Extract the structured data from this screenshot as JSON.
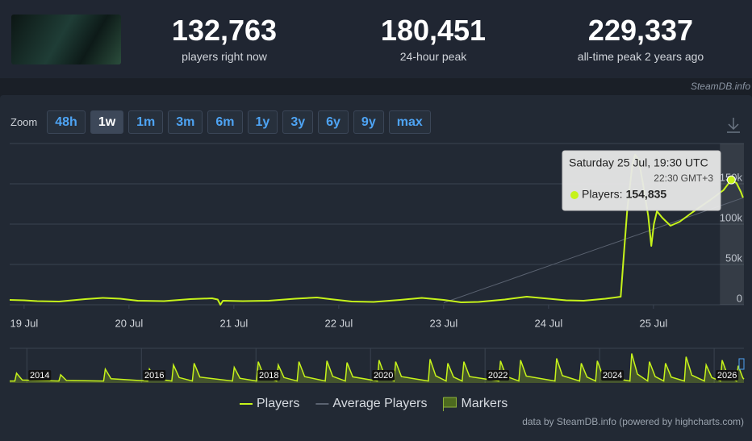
{
  "header": {
    "stats": [
      {
        "value": "132,763",
        "label": "players right now"
      },
      {
        "value": "180,451",
        "label": "24-hour peak"
      },
      {
        "value": "229,337",
        "label": "all-time peak 2 years ago"
      }
    ],
    "credit": "SteamDB.info"
  },
  "zoom": {
    "label": "Zoom",
    "buttons": [
      "48h",
      "1w",
      "1m",
      "3m",
      "6m",
      "1y",
      "3y",
      "6y",
      "9y",
      "max"
    ],
    "active": "1w"
  },
  "chart_data": [
    {
      "type": "line",
      "x": [
        -3.3,
        0,
        3,
        8,
        14,
        18,
        22,
        26,
        32,
        38,
        43,
        44.3,
        44.9,
        45.5,
        50,
        56,
        62,
        67,
        70,
        75,
        80,
        86,
        91,
        96,
        100,
        104,
        110,
        115,
        119,
        124,
        128,
        133,
        136.5,
        137.2,
        138,
        139.2,
        139.8,
        140.6,
        141.6,
        142.8,
        143.5,
        144.1,
        144.8,
        146,
        147.9,
        150,
        153,
        157,
        160,
        161.8,
        163,
        164,
        164.5
      ],
      "series": [
        {
          "name": "Players",
          "color": "#c6f31a",
          "values": [
            6000,
            5500,
            4500,
            4000,
            7000,
            8500,
            7500,
            5000,
            4500,
            7000,
            8000,
            6500,
            0,
            5000,
            4500,
            5000,
            7500,
            9000,
            7000,
            4000,
            3500,
            6000,
            8500,
            6000,
            3000,
            3500,
            6500,
            10000,
            8000,
            5500,
            5000,
            7500,
            10000,
            60000,
            118000,
            175000,
            186000,
            180000,
            150000,
            110000,
            73000,
            100000,
            116000,
            108000,
            98000,
            103000,
            115000,
            130000,
            142000,
            154835,
            151000,
            140000,
            132763
          ]
        },
        {
          "name": "Average Players",
          "color": "#5a6270",
          "values": [
            null,
            null,
            null,
            null,
            null,
            null,
            null,
            null,
            null,
            null,
            null,
            null,
            null,
            null,
            null,
            null,
            null,
            null,
            null,
            null,
            null,
            null,
            null,
            2500,
            10000,
            17700,
            29000,
            38600,
            46200,
            55700,
            63300,
            72800,
            79400,
            80800,
            82300,
            84600,
            85700,
            87200,
            89100,
            91400,
            92700,
            93900,
            95200,
            97500,
            101100,
            105100,
            110800,
            118400,
            124100,
            127500,
            129800,
            131700,
            132600
          ]
        }
      ],
      "markers": {
        "name": "Markers",
        "color": "#4d6a1f"
      },
      "xlim": [
        -3.3,
        164.7
      ],
      "xticks": [
        {
          "value": 0,
          "label": "19 Jul"
        },
        {
          "value": 24,
          "label": "20 Jul"
        },
        {
          "value": 48,
          "label": "21 Jul"
        },
        {
          "value": 72,
          "label": "22 Jul"
        },
        {
          "value": 96,
          "label": "23 Jul"
        },
        {
          "value": 120,
          "label": "24 Jul"
        },
        {
          "value": 144,
          "label": "25 Jul"
        }
      ],
      "ylim": [
        0,
        200000
      ],
      "yticks": [
        0,
        {
          "value": 50000,
          "label": "50k"
        },
        {
          "value": 100000,
          "label": "100k"
        },
        {
          "value": 150000,
          "label": "150k"
        }
      ],
      "grid": true
    },
    {
      "type": "area",
      "x": [
        2013.7,
        2013.79,
        2013.82,
        2013.92,
        2014.56,
        2014.59,
        2014.69,
        2015.34,
        2015.37,
        2015.47,
        2016.11,
        2016.14,
        2016.24,
        2016.53,
        2016.56,
        2016.66,
        2016.89,
        2016.92,
        2017.02,
        2017.59,
        2017.62,
        2017.72,
        2018.01,
        2018.04,
        2018.14,
        2018.36,
        2018.39,
        2018.49,
        2018.72,
        2018.75,
        2018.85,
        2019.21,
        2019.24,
        2019.34,
        2019.56,
        2019.59,
        2019.69,
        2020.12,
        2020.15,
        2020.25,
        2020.41,
        2020.44,
        2020.54,
        2021.01,
        2021.04,
        2021.14,
        2021.32,
        2021.35,
        2021.45,
        2021.6,
        2021.63,
        2021.73,
        2022.24,
        2022.27,
        2022.37,
        2022.59,
        2022.62,
        2022.72,
        2023.22,
        2023.25,
        2023.35,
        2023.65,
        2023.68,
        2023.78,
        2023.93,
        2023.96,
        2024.06,
        2024.53,
        2024.56,
        2024.66,
        2024.84,
        2024.87,
        2024.97,
        2025.12,
        2025.15,
        2025.25,
        2025.48,
        2025.51,
        2025.61,
        2025.83,
        2025.86,
        2025.96,
        2026.11,
        2026.14,
        2026.24,
        2026.39,
        2026.42,
        2026.5,
        2026.52
      ],
      "values": [
        15000,
        15000,
        76000,
        22800,
        15000,
        64000,
        19200,
        15000,
        108000,
        32400,
        15000,
        108000,
        32400,
        15000,
        140000,
        42000,
        15000,
        153000,
        45900,
        15000,
        121000,
        36300,
        15000,
        166000,
        49800,
        15000,
        140000,
        42000,
        15000,
        166000,
        49800,
        15000,
        172000,
        51600,
        15000,
        159000,
        47700,
        15000,
        178000,
        53400,
        15000,
        166000,
        49800,
        15000,
        185000,
        55500,
        15000,
        153000,
        45900,
        15000,
        166000,
        49800,
        15000,
        172000,
        51600,
        15000,
        178000,
        53400,
        15000,
        191000,
        57300,
        15000,
        153000,
        45900,
        15000,
        172000,
        51600,
        15000,
        229337,
        68800,
        15000,
        166000,
        49800,
        15000,
        153000,
        45900,
        15000,
        204000,
        61200,
        15000,
        140000,
        42000,
        15000,
        178000,
        53400,
        15000,
        134000,
        40200,
        30000
      ],
      "color": "#c6f31a",
      "xlim": [
        2013.7,
        2026.52
      ],
      "xticks": [
        2014,
        2016,
        2018,
        2020,
        2022,
        2024,
        2026
      ],
      "ylim": [
        0,
        270000
      ]
    }
  ],
  "tooltip": {
    "title": "Saturday 25 Jul, 19:30 UTC",
    "subtitle": "22:30 GMT+3",
    "label": "Players:",
    "value": "154,835"
  },
  "footer": "data by SteamDB.info (powered by highcharts.com)"
}
